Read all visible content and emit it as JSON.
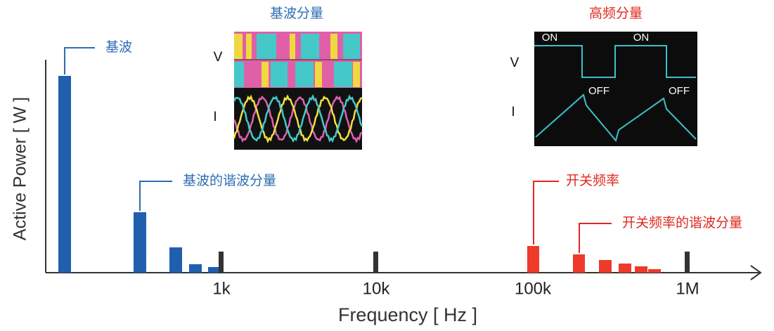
{
  "title_left": "基波分量",
  "title_right": "高频分量",
  "left_inset": {
    "v_label": "V",
    "i_label": "I"
  },
  "right_inset": {
    "v_label": "V",
    "i_label": "I",
    "on_labels": [
      "ON",
      "ON"
    ],
    "off_labels": [
      "OFF",
      "OFF"
    ]
  },
  "callouts": [
    "基波",
    "基波的谐波分量",
    "开关频率",
    "开关频率的谐波分量"
  ],
  "y_axis_label": "Active Power [ W ]",
  "x_axis_label": "Frequency [ Hz ]",
  "x_ticks": [
    "1k",
    "10k",
    "100k",
    "1M"
  ]
}
